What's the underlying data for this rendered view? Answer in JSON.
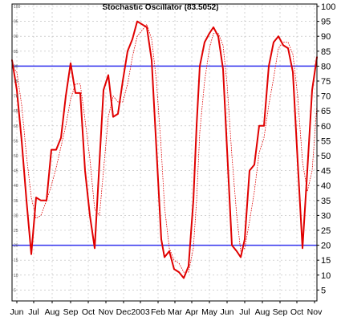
{
  "chart_data": {
    "type": "line",
    "title": "Stochastic Oscillator (83.5052)",
    "xlabel": "",
    "ylabel": "",
    "ylim": [
      0,
      100
    ],
    "xlim": [
      0,
      380
    ],
    "grid": true,
    "legend": "none",
    "y_ticks": [
      5,
      10,
      15,
      20,
      25,
      30,
      35,
      40,
      45,
      50,
      55,
      60,
      65,
      70,
      75,
      80,
      85,
      90,
      95,
      100
    ],
    "x_ticks": [
      {
        "label": "Jun",
        "x": 6
      },
      {
        "label": "Jul",
        "x": 27
      },
      {
        "label": "Aug",
        "x": 50
      },
      {
        "label": "Sep",
        "x": 73
      },
      {
        "label": "Oct",
        "x": 95
      },
      {
        "label": "Nov",
        "x": 117
      },
      {
        "label": "Dec",
        "x": 139
      },
      {
        "label": "2003",
        "x": 160
      },
      {
        "label": "Feb",
        "x": 182
      },
      {
        "label": "Mar",
        "x": 203
      },
      {
        "label": "Apr",
        "x": 224
      },
      {
        "label": "May",
        "x": 246
      },
      {
        "label": "Jun",
        "x": 268
      },
      {
        "label": "Jul",
        "x": 290
      },
      {
        "label": "Aug",
        "x": 312
      },
      {
        "label": "Sep",
        "x": 334
      },
      {
        "label": "Oct",
        "x": 355
      },
      {
        "label": "Nov",
        "x": 377
      }
    ],
    "reference_lines": [
      {
        "value": 80,
        "color": "#3333ee"
      },
      {
        "value": 20,
        "color": "#3333ee"
      }
    ],
    "series": [
      {
        "color": "#e00000",
        "style": "solid",
        "points": [
          [
            0,
            82
          ],
          [
            6,
            72
          ],
          [
            12,
            55
          ],
          [
            18,
            35
          ],
          [
            24,
            17
          ],
          [
            30,
            36
          ],
          [
            36,
            35
          ],
          [
            43,
            35
          ],
          [
            49,
            52
          ],
          [
            55,
            52
          ],
          [
            61,
            56
          ],
          [
            67,
            70
          ],
          [
            73,
            81
          ],
          [
            79,
            71
          ],
          [
            85,
            71
          ],
          [
            91,
            45
          ],
          [
            97,
            30
          ],
          [
            103,
            19
          ],
          [
            109,
            48
          ],
          [
            114,
            72
          ],
          [
            120,
            77
          ],
          [
            126,
            63
          ],
          [
            132,
            64
          ],
          [
            138,
            75
          ],
          [
            144,
            85
          ],
          [
            150,
            89
          ],
          [
            156,
            95
          ],
          [
            162,
            94
          ],
          [
            168,
            93
          ],
          [
            174,
            82
          ],
          [
            180,
            52
          ],
          [
            186,
            22
          ],
          [
            190,
            16
          ],
          [
            196,
            18
          ],
          [
            202,
            12
          ],
          [
            208,
            11
          ],
          [
            214,
            9
          ],
          [
            220,
            13
          ],
          [
            226,
            35
          ],
          [
            230,
            60
          ],
          [
            234,
            80
          ],
          [
            240,
            88
          ],
          [
            246,
            91
          ],
          [
            251,
            93
          ],
          [
            257,
            90
          ],
          [
            263,
            79
          ],
          [
            268,
            52
          ],
          [
            274,
            20
          ],
          [
            280,
            18
          ],
          [
            285,
            16
          ],
          [
            290,
            22
          ],
          [
            296,
            45
          ],
          [
            302,
            47
          ],
          [
            308,
            60
          ],
          [
            314,
            60
          ],
          [
            320,
            80
          ],
          [
            326,
            88
          ],
          [
            332,
            90
          ],
          [
            338,
            87
          ],
          [
            344,
            86
          ],
          [
            350,
            78
          ],
          [
            356,
            48
          ],
          [
            362,
            19
          ],
          [
            368,
            45
          ],
          [
            374,
            72
          ],
          [
            380,
            83
          ]
        ]
      },
      {
        "color": "#e00000",
        "style": "dotted",
        "points": [
          [
            0,
            80
          ],
          [
            6,
            78
          ],
          [
            12,
            67
          ],
          [
            18,
            50
          ],
          [
            24,
            36
          ],
          [
            30,
            29
          ],
          [
            36,
            30
          ],
          [
            43,
            35
          ],
          [
            49,
            40
          ],
          [
            55,
            46
          ],
          [
            61,
            53
          ],
          [
            67,
            60
          ],
          [
            73,
            69
          ],
          [
            79,
            74
          ],
          [
            85,
            74
          ],
          [
            91,
            62
          ],
          [
            97,
            49
          ],
          [
            103,
            32
          ],
          [
            109,
            30
          ],
          [
            114,
            45
          ],
          [
            120,
            63
          ],
          [
            126,
            70
          ],
          [
            132,
            68
          ],
          [
            138,
            68
          ],
          [
            144,
            74
          ],
          [
            150,
            83
          ],
          [
            156,
            90
          ],
          [
            162,
            92
          ],
          [
            168,
            94
          ],
          [
            174,
            89
          ],
          [
            180,
            75
          ],
          [
            186,
            52
          ],
          [
            190,
            33
          ],
          [
            196,
            19
          ],
          [
            202,
            15
          ],
          [
            208,
            14
          ],
          [
            214,
            11
          ],
          [
            220,
            11
          ],
          [
            226,
            19
          ],
          [
            230,
            35
          ],
          [
            234,
            58
          ],
          [
            240,
            75
          ],
          [
            246,
            86
          ],
          [
            251,
            91
          ],
          [
            257,
            91
          ],
          [
            263,
            87
          ],
          [
            268,
            74
          ],
          [
            274,
            50
          ],
          [
            280,
            30
          ],
          [
            285,
            18
          ],
          [
            290,
            19
          ],
          [
            296,
            28
          ],
          [
            302,
            38
          ],
          [
            308,
            51
          ],
          [
            314,
            56
          ],
          [
            320,
            67
          ],
          [
            326,
            76
          ],
          [
            332,
            86
          ],
          [
            338,
            88
          ],
          [
            344,
            88
          ],
          [
            350,
            84
          ],
          [
            356,
            70
          ],
          [
            362,
            48
          ],
          [
            368,
            38
          ],
          [
            374,
            45
          ],
          [
            380,
            67
          ]
        ]
      }
    ]
  }
}
